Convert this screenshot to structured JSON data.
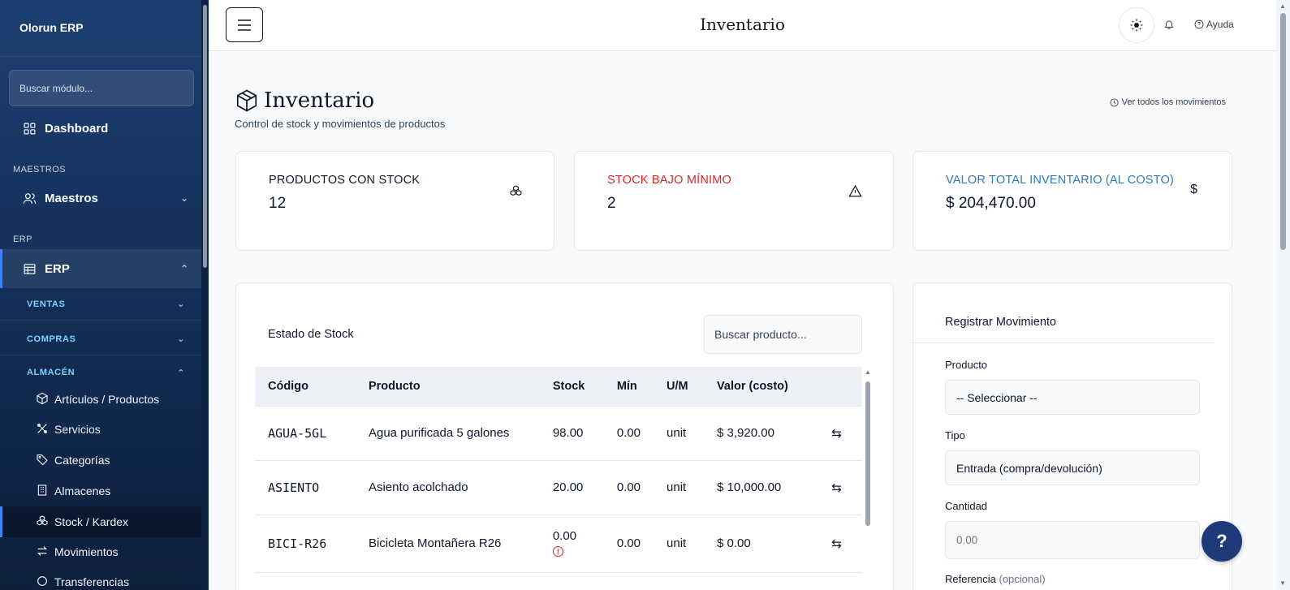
{
  "sidebar": {
    "brand": "Olorun ERP",
    "search_placeholder": "Buscar módulo...",
    "dashboard": "Dashboard",
    "section_maestros": "MAESTROS",
    "maestros": "Maestros",
    "section_erp": "ERP",
    "erp": "ERP",
    "groups": [
      "VENTAS",
      "COMPRAS",
      "ALMACÉN"
    ],
    "almacen_items": [
      "Artículos / Productos",
      "Servicios",
      "Categorías",
      "Almacenes",
      "Stock / Kardex",
      "Movimientos",
      "Transferencias"
    ]
  },
  "header": {
    "title": "Inventario",
    "help": "Ayuda"
  },
  "page": {
    "title": "Inventario",
    "subtitle": "Control de stock y movimientos de productos",
    "view_all": "Ver todos los movimientos"
  },
  "stats": [
    {
      "label": "PRODUCTOS CON STOCK",
      "value": "12",
      "icon": "boxes-icon",
      "color": "#0f172a"
    },
    {
      "label": "STOCK BAJO MÍNIMO",
      "value": "2",
      "icon": "warning-icon",
      "color": "#dc2626"
    },
    {
      "label": "VALOR TOTAL INVENTARIO (AL COSTO)",
      "value": "$ 204,470.00",
      "icon": "dollar-icon",
      "color": "#2b7bb9"
    }
  ],
  "stock": {
    "title": "Estado de Stock",
    "search_placeholder": "Buscar producto...",
    "columns": [
      "Código",
      "Producto",
      "Stock",
      "Mín",
      "U/M",
      "Valor (costo)"
    ],
    "rows": [
      {
        "code": "AGUA-5GL",
        "product": "Agua purificada 5 galones",
        "stock": "98.00",
        "min": "0.00",
        "uom": "unit",
        "value": "$ 3,920.00"
      },
      {
        "code": "ASIENTO",
        "product": "Asiento acolchado",
        "stock": "20.00",
        "min": "0.00",
        "uom": "unit",
        "value": "$ 10,000.00"
      },
      {
        "code": "BICI-R26",
        "product": "Bicicleta Montañera R26",
        "stock": "0.00",
        "min": "0.00",
        "uom": "unit",
        "value": "$ 0.00"
      }
    ]
  },
  "form": {
    "title": "Registrar Movimiento",
    "product_label": "Producto",
    "product_value": "-- Seleccionar --",
    "type_label": "Tipo",
    "type_value": "Entrada (compra/devolución)",
    "qty_label": "Cantidad",
    "qty_placeholder": "0.00",
    "ref_label": "Referencia",
    "ref_optional": "(opcional)"
  },
  "fab": "?"
}
